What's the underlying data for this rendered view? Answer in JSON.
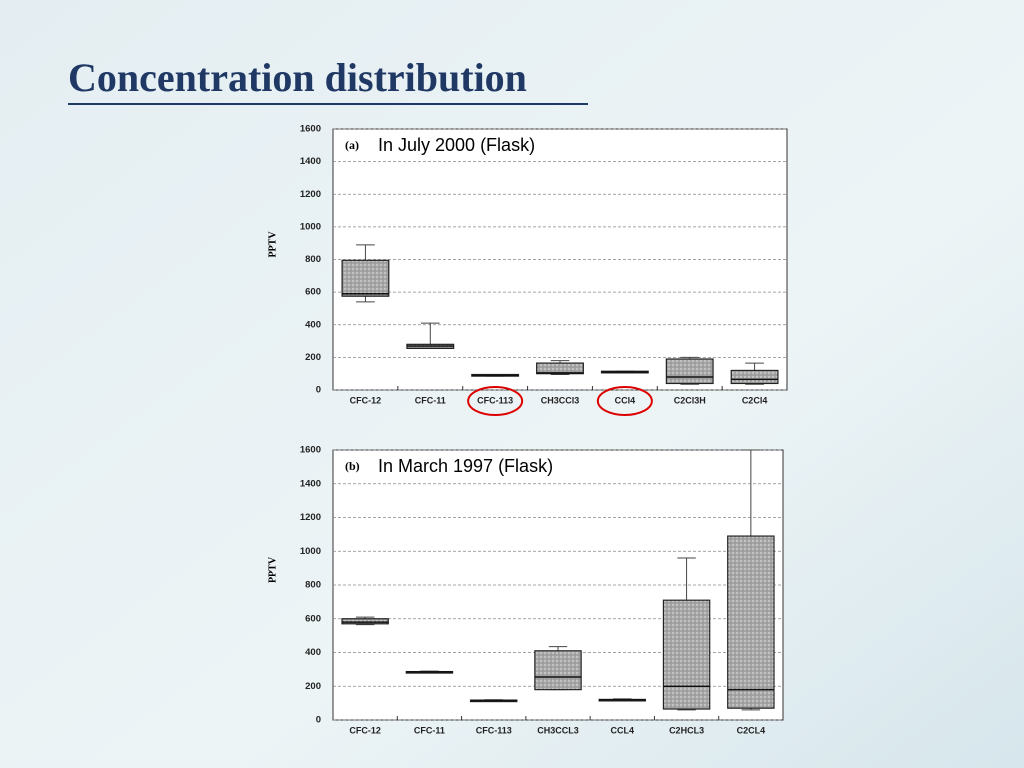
{
  "slide_title": "Concentration distribution",
  "chart_data": [
    {
      "type": "box",
      "panel": "(a)",
      "annotation": "In July 2000 (Flask)",
      "y_label": "PPTV",
      "categories": [
        "CFC-12",
        "CFC-11",
        "CFC-113",
        "CH3CCl3",
        "CCl4",
        "C2Cl3H",
        "C2Cl4"
      ],
      "min": [
        540,
        255,
        85,
        95,
        105,
        35,
        35
      ],
      "q1": [
        575,
        255,
        85,
        100,
        105,
        40,
        40
      ],
      "median": [
        590,
        270,
        90,
        105,
        110,
        80,
        65
      ],
      "q3": [
        795,
        280,
        95,
        165,
        115,
        190,
        120
      ],
      "max": [
        890,
        410,
        95,
        180,
        115,
        200,
        165
      ],
      "color": "#8c8c8c",
      "highlighted_categories": [
        2,
        4
      ],
      "ylim": [
        0,
        1600
      ],
      "yticks": [
        0,
        200,
        400,
        600,
        800,
        1000,
        1200,
        1400,
        1600
      ],
      "grid": true
    },
    {
      "type": "box",
      "panel": "(b)",
      "annotation": "In  March 1997 (Flask)",
      "y_label": "PPTV",
      "categories": [
        "CFC-12",
        "CFC-11",
        "CFC-113",
        "CH3CCL3",
        "CCL4",
        "C2HCL3",
        "C2CL4"
      ],
      "min": [
        565,
        280,
        110,
        180,
        115,
        60,
        60
      ],
      "q1": [
        570,
        283,
        112,
        180,
        117,
        65,
        70
      ],
      "median": [
        580,
        285,
        115,
        255,
        120,
        200,
        180
      ],
      "q3": [
        600,
        287,
        118,
        410,
        122,
        710,
        1090
      ],
      "max": [
        610,
        290,
        120,
        435,
        125,
        960,
        1600
      ],
      "color": "#8c8c8c",
      "highlighted_categories": [],
      "ylim": [
        0,
        1600
      ],
      "yticks": [
        0,
        200,
        400,
        600,
        800,
        1000,
        1200,
        1400,
        1600
      ],
      "grid": true
    }
  ]
}
